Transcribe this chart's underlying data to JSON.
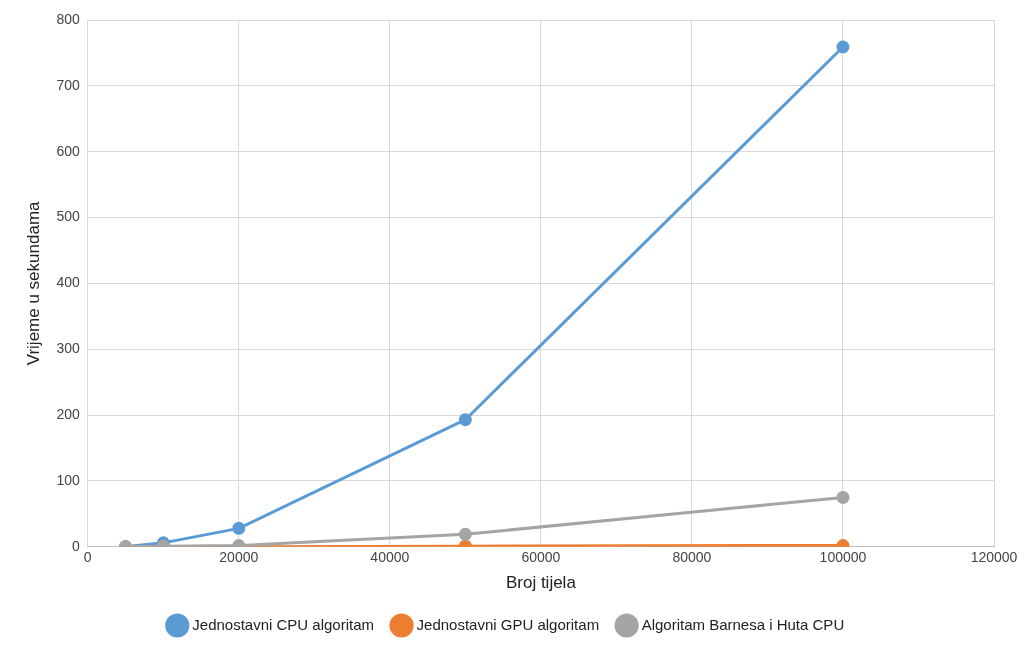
{
  "chart_data": {
    "type": "line",
    "xlabel": "Broj tijela",
    "ylabel": "Vrijeme u sekundama",
    "x": [
      5000,
      10000,
      20000,
      50000,
      100000
    ],
    "series": [
      {
        "name": "Jednostavni CPU algoritam",
        "color": "#5b9bd5",
        "values": [
          0,
          6,
          28,
          193,
          759
        ]
      },
      {
        "name": "Jednostavni GPU algoritam",
        "color": "#ed7d31",
        "values": [
          0,
          0,
          0,
          1,
          2
        ]
      },
      {
        "name": "Algoritam Barnesa i Huta CPU",
        "color": "#a5a5a5",
        "values": [
          0,
          1,
          2,
          19,
          75
        ]
      }
    ],
    "xlim": [
      0,
      120000
    ],
    "xticks": [
      0,
      20000,
      40000,
      60000,
      80000,
      100000,
      120000
    ],
    "ylim": [
      0,
      800
    ],
    "yticks": [
      0,
      100,
      200,
      300,
      400,
      500,
      600,
      700,
      800
    ],
    "grid": true,
    "legend": "bottom",
    "marker": "circle",
    "line_style": "solid"
  }
}
